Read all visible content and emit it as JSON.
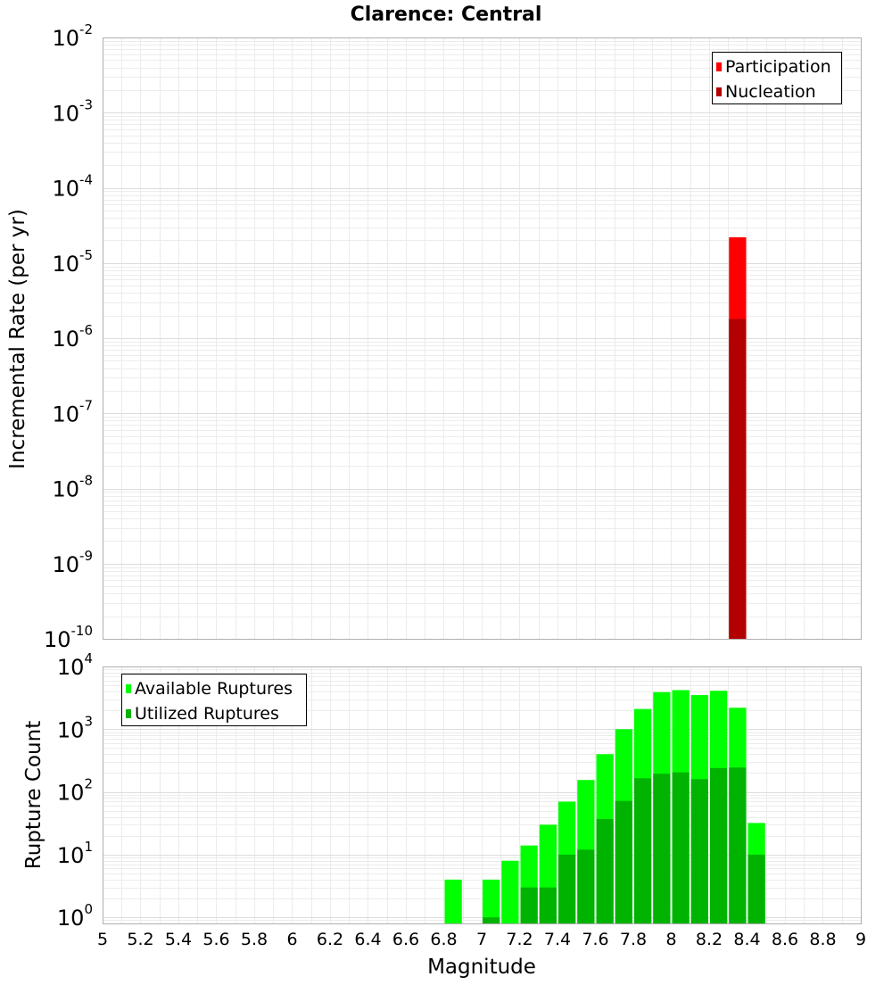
{
  "chart_data": [
    {
      "type": "bar",
      "title": "Clarence: Central",
      "ylabel": "Incremental Rate (per yr)",
      "xlabel": "",
      "xlim": [
        5,
        9
      ],
      "yscale": "log",
      "ylim": [
        1e-10,
        0.01
      ],
      "y_tick_exponents": [
        "-10",
        "-9",
        "-8",
        "-7",
        "-6",
        "-5",
        "-4",
        "-3",
        "-2"
      ],
      "grid": true,
      "legend_position": "top-right",
      "series": [
        {
          "name": "Participation",
          "color": "#ff0000",
          "points": [
            {
              "x": 8.35,
              "y": 2.2e-05
            }
          ]
        },
        {
          "name": "Nucleation",
          "color": "#b30000",
          "points": [
            {
              "x": 8.35,
              "y": 1.8e-06
            }
          ]
        }
      ]
    },
    {
      "type": "bar",
      "title": "",
      "ylabel": "Rupture Count",
      "xlabel": "Magnitude",
      "xlim": [
        5,
        9
      ],
      "x_ticks": [
        "5",
        "5.2",
        "5.4",
        "5.6",
        "5.8",
        "6",
        "6.2",
        "6.4",
        "6.6",
        "6.8",
        "7",
        "7.2",
        "7.4",
        "7.6",
        "7.8",
        "8",
        "8.2",
        "8.4",
        "8.6",
        "8.8",
        "9"
      ],
      "yscale": "log",
      "ylim": [
        0.8,
        10000
      ],
      "y_tick_exponents": [
        "0",
        "1",
        "2",
        "3",
        "4"
      ],
      "grid": true,
      "legend_position": "top-left",
      "x": [
        6.85,
        7.05,
        7.15,
        7.25,
        7.35,
        7.45,
        7.55,
        7.65,
        7.75,
        7.85,
        7.95,
        8.05,
        8.15,
        8.25,
        8.35,
        8.45
      ],
      "series": [
        {
          "name": "Available Ruptures",
          "color": "#00ff00",
          "values": [
            4,
            4,
            8,
            14,
            30,
            70,
            155,
            400,
            1000,
            2100,
            3900,
            4200,
            3500,
            4100,
            2200,
            32
          ]
        },
        {
          "name": "Utilized Ruptures",
          "color": "#00b300",
          "values": [
            null,
            1,
            null,
            3,
            3,
            10,
            12,
            37,
            72,
            165,
            195,
            205,
            160,
            240,
            245,
            10
          ]
        }
      ]
    }
  ]
}
